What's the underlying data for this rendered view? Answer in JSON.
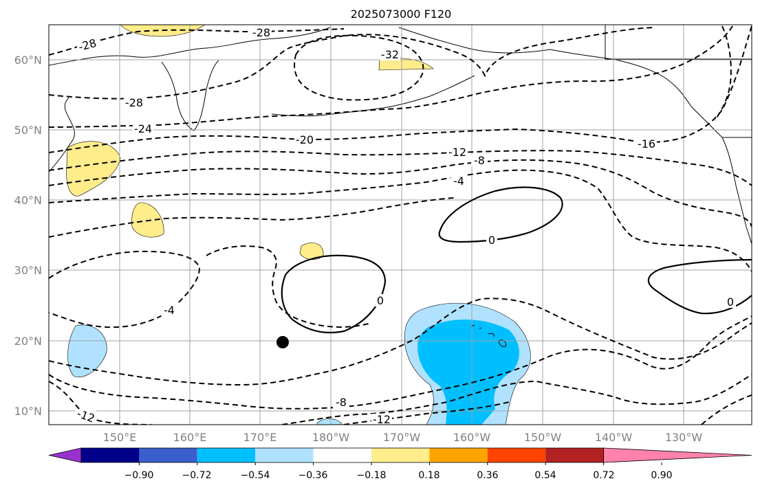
{
  "title": "2025073000 F120",
  "map": {
    "lat_labels": [
      "60°N",
      "50°N",
      "40°N",
      "30°N",
      "20°N",
      "10°N"
    ],
    "lon_labels": [
      "150°E",
      "160°E",
      "170°E",
      "180°W",
      "170°W",
      "160°W",
      "150°W",
      "140°W",
      "130°W"
    ],
    "axis_label_color": "#808080",
    "grid_color": "#a0a0a0",
    "contour_labels": [
      "-28",
      "-28",
      "-32",
      "-28",
      "-24",
      "-20",
      "-16",
      "-12",
      "-8",
      "-4",
      "0",
      "0",
      "0",
      "-4",
      "-8",
      "-12",
      "-12"
    ],
    "marker": "storm-center-dot"
  },
  "colorbar": {
    "tick_labels": [
      "−0.90",
      "−0.72",
      "−0.54",
      "−0.36",
      "−0.18",
      "0.18",
      "0.36",
      "0.54",
      "0.72",
      "0.90"
    ],
    "colors": [
      "#9932cc",
      "#00008b",
      "#3a5fcd",
      "#00bfff",
      "#b0e2ff",
      "#ffffff",
      "#ffec8b",
      "#ffa500",
      "#ff4500",
      "#b22222",
      "#ff82ab"
    ]
  }
}
